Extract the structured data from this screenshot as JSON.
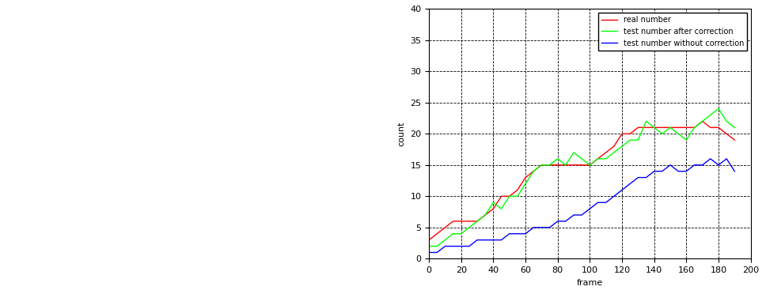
{
  "chart_data": {
    "type": "line",
    "x_label": "frame",
    "y_label": "count",
    "x": [
      0,
      5,
      10,
      15,
      20,
      25,
      30,
      35,
      40,
      45,
      50,
      55,
      60,
      65,
      70,
      75,
      80,
      85,
      90,
      95,
      100,
      105,
      110,
      115,
      120,
      125,
      130,
      135,
      140,
      145,
      150,
      155,
      160,
      165,
      170,
      175,
      180,
      185,
      190
    ],
    "series": [
      {
        "name": "real number",
        "color": "#ff0000",
        "values": [
          3,
          4,
          5,
          6,
          6,
          6,
          6,
          7,
          8,
          10,
          10,
          11,
          13,
          14,
          15,
          15,
          15,
          15,
          15,
          15,
          15,
          16,
          17,
          18,
          20,
          20,
          21,
          21,
          21,
          21,
          21,
          21,
          21,
          21,
          22,
          21,
          21,
          20,
          19
        ]
      },
      {
        "name": "test number after correction",
        "color": "#00ff00",
        "values": [
          2,
          2,
          3,
          4,
          4,
          5,
          6,
          7,
          9,
          8,
          10,
          10,
          12,
          14,
          15,
          15,
          16,
          15,
          17,
          16,
          15,
          16,
          16,
          17,
          18,
          19,
          19,
          22,
          21,
          20,
          21,
          20,
          19,
          21,
          22,
          23,
          24,
          22,
          21
        ]
      },
      {
        "name": "test number without correction",
        "color": "#0000ff",
        "values": [
          1,
          1,
          2,
          2,
          2,
          2,
          3,
          3,
          3,
          3,
          4,
          4,
          4,
          5,
          5,
          5,
          6,
          6,
          7,
          7,
          8,
          9,
          9,
          10,
          11,
          12,
          13,
          13,
          14,
          14,
          15,
          14,
          14,
          15,
          15,
          16,
          15,
          16,
          14
        ]
      }
    ],
    "xlim": [
      0,
      200
    ],
    "xticks": [
      0,
      20,
      40,
      60,
      80,
      100,
      120,
      140,
      160,
      180,
      200
    ],
    "ylim": [
      0,
      40
    ],
    "yticks": [
      0,
      5,
      10,
      15,
      20,
      25,
      30,
      35,
      40
    ],
    "grid": true,
    "legend": "upper right"
  }
}
